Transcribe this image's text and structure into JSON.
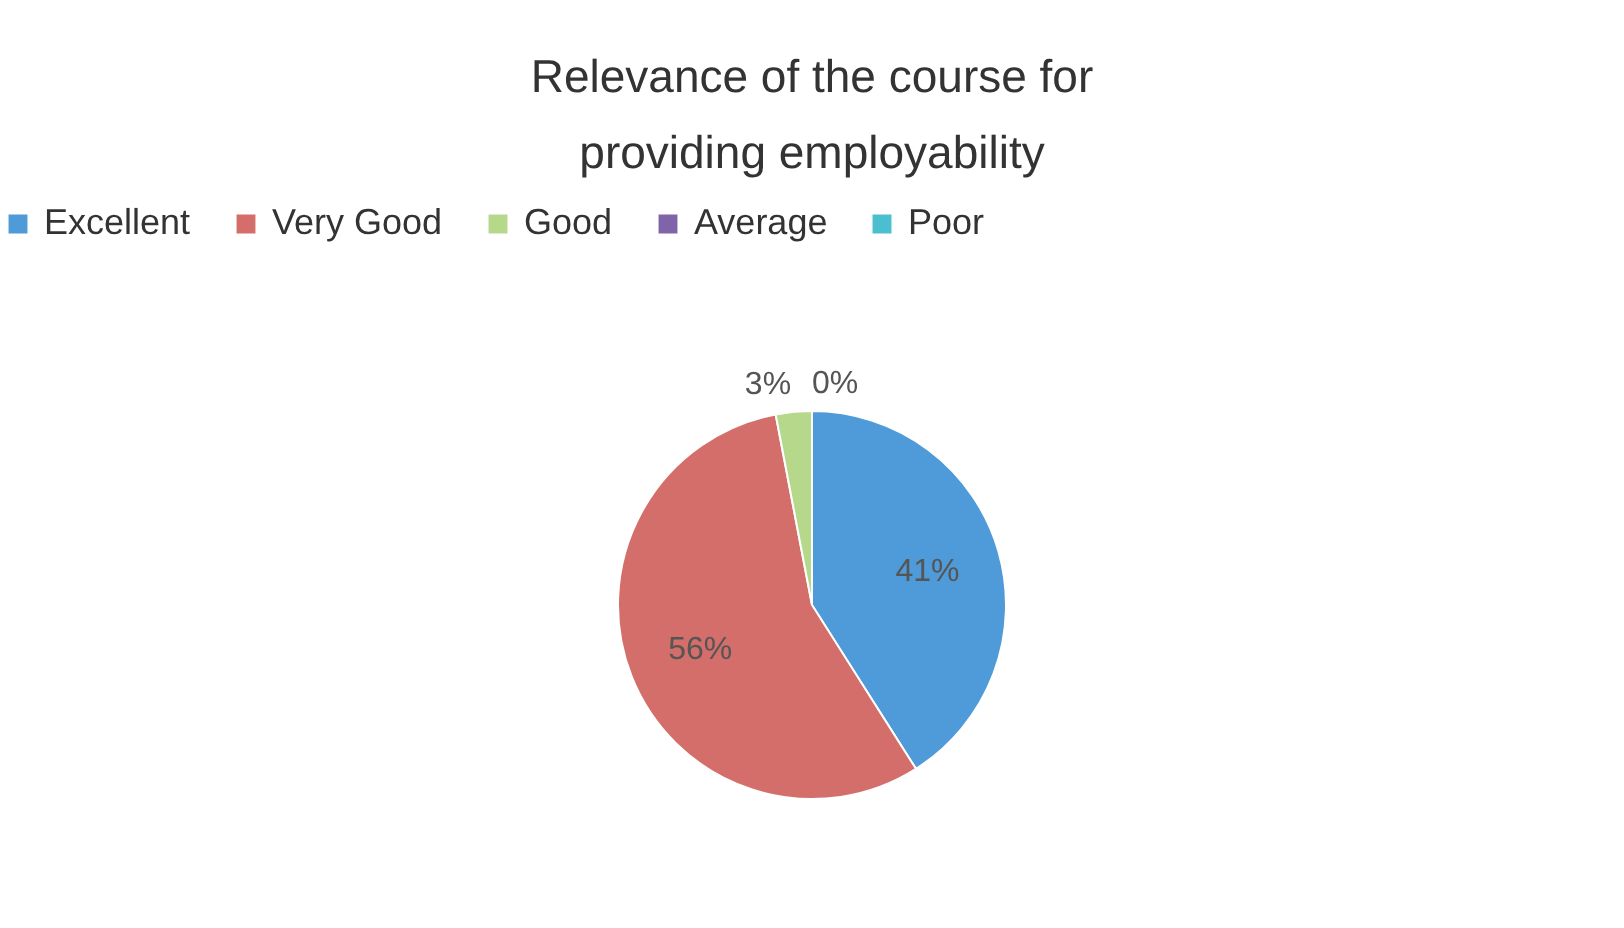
{
  "chart_data": {
    "type": "pie",
    "title": "Relevance of the course for providing employability",
    "categories": [
      "Excellent",
      "Very Good",
      "Good",
      "Average",
      "Poor"
    ],
    "values": [
      41,
      56,
      3,
      0,
      0
    ],
    "colors": [
      "#4f9ad8",
      "#d46e6a",
      "#b5d88a",
      "#7f65a8",
      "#4bbfd0"
    ],
    "value_labels": [
      "41%",
      "56%",
      "3%",
      "0%",
      null
    ],
    "legend": "top"
  }
}
